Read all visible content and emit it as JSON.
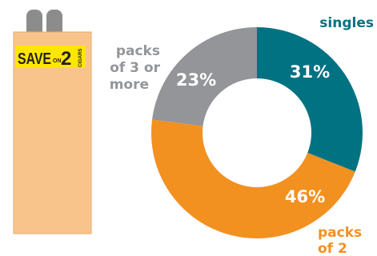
{
  "illustration": {
    "badge": {
      "save_text": "SAVE",
      "on_text": "ON",
      "number_text": "2",
      "cigars_text": "CIGARS"
    },
    "colors": {
      "pack": "#f9c48b",
      "pack_outline": "#e6aa6c",
      "cigar_tip": "#8c8c8c",
      "badge_bg": "#ffe600",
      "badge_text": "#231f20"
    }
  },
  "chart_data": {
    "type": "pie",
    "donut": true,
    "categories": [
      "singles",
      "packs of 2",
      "packs of 3 or more"
    ],
    "values": [
      31,
      46,
      23
    ],
    "value_labels": [
      "31%",
      "46%",
      "23%"
    ],
    "category_labels": [
      [
        "singles"
      ],
      [
        "packs",
        "of 2"
      ],
      [
        "packs",
        "of 3 or",
        "more"
      ]
    ],
    "colors": [
      "#007282",
      "#f29120",
      "#939598"
    ],
    "start_angle_deg": 0,
    "direction": "clockwise",
    "legend": "none"
  }
}
